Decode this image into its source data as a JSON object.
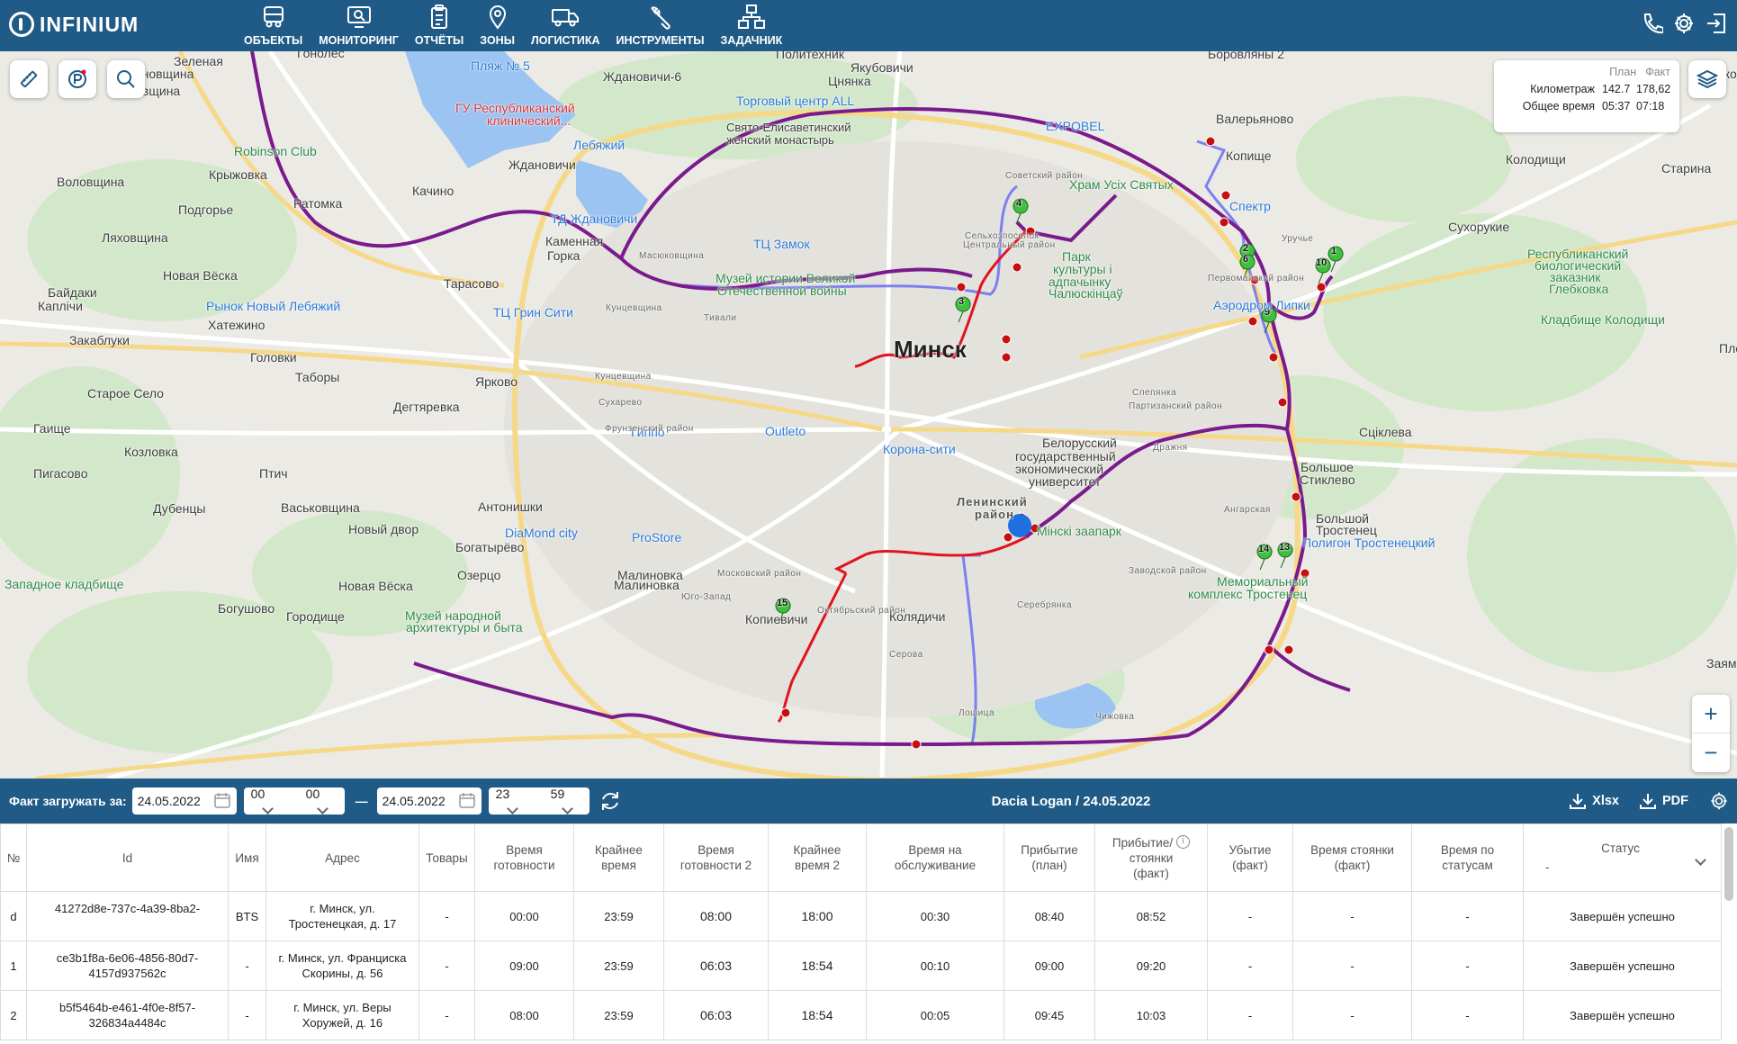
{
  "app": {
    "logo_text": "INFINIUM"
  },
  "nav": [
    {
      "label": "ОБЪЕКТЫ",
      "icon": "truck-icon"
    },
    {
      "label": "МОНИТОРИНГ",
      "icon": "monitor-search-icon"
    },
    {
      "label": "ОТЧЁТЫ",
      "icon": "clipboard-icon"
    },
    {
      "label": "ЗОНЫ",
      "icon": "map-pin-icon"
    },
    {
      "label": "ЛОГИСТИКА",
      "icon": "delivery-truck-icon"
    },
    {
      "label": "ИНСТРУМЕНТЫ",
      "icon": "wrench-icon"
    },
    {
      "label": "ЗАДАЧНИК",
      "icon": "hierarchy-icon"
    }
  ],
  "header_icons": [
    "phone-icon",
    "gear-icon",
    "logout-icon"
  ],
  "map": {
    "city_label": "Минск",
    "labels": [
      "Зеленая",
      "Гонолес",
      "Малиновщина",
      "Воловщина",
      "Пляж № 5",
      "Ждановичи-6",
      "Политехник",
      "Якубовичи",
      "Цнянка",
      "Торговый центр ALL",
      "Свято-Елисаветинский",
      "женский монастырь",
      "ГУ Республиканский",
      "клинический...",
      "Лебяжий",
      "Robinson Club",
      "Ждановичи",
      "Крыжовка",
      "Качино",
      "Воловщина",
      "Подгорье",
      "Ратомка",
      "ТД Ждановичи",
      "Ляховщина",
      "Каменная",
      "Горка",
      "Масюковщина",
      "ТЦ Замок",
      "Новая Вёска",
      "Тарасово",
      "Байдаки",
      "Каплічи",
      "Рынок Новый Лебяжий",
      "Музей истории Великой",
      "Отечественной войны",
      "Хатежино",
      "ТЦ Грин Сити",
      "Кунцевщина",
      "Тивали",
      "Закаблуки",
      "Головки",
      "Таборы",
      "Старое Село",
      "Дегтяревка",
      "Ярково",
      "Сухарево",
      "Гаище",
      "Outleto",
      "Гиппо",
      "Козловка",
      "Пигасово",
      "Птич",
      "Корона-сити",
      "Белорусский",
      "государственный",
      "экономический",
      "университет",
      "Ленинский",
      "район",
      "Дубенцы",
      "Васьковщина",
      "Антонишки",
      "Новый двор",
      "DiaMond city",
      "ProStore",
      "Богатырёво",
      "Западное кладбище",
      "Озерцо",
      "Малиновка",
      "Новая Вёска",
      "Богушово",
      "Городище",
      "Музей народной",
      "архитектуры и быта",
      "Копиевичи",
      "Колядичи",
      "Мінскі заапарк",
      "Мемориальный",
      "комплекс Тростенец",
      "Полигон Тростенецкий",
      "Большой",
      "Тростенец",
      "Большое",
      "Стиклево",
      "Сціклева",
      "Кладбище Колодищи",
      "Республиканский",
      "биологический",
      "заказник",
      "Глебковка",
      "Сухорукие",
      "Колодищи",
      "Старина",
      "Аэродром Липки",
      "Парк",
      "культуры і",
      "адпачынку",
      "Чалюскінцаў",
      "Храм Усіх Святых",
      "Спектр",
      "Копище",
      "Валерьяново",
      "EXPOBEL",
      "Боровляны 2",
      "Лошица",
      "Серова",
      "Чижовка",
      "Уручье",
      "Ангарская",
      "Дражня",
      "Серебрянка",
      "Первомайский район",
      "Советский район",
      "Сельхозпоселок",
      "Кунцевщина",
      "Фрунзенский район",
      "Московский район",
      "Октябрьский район",
      "Заводской район",
      "Партизанский район",
      "Центральный район",
      "Юго-Запад",
      "Слепянка",
      "Малиновка",
      "Жуко",
      "Заям",
      "Плещ"
    ],
    "stop_numbers": [
      "1",
      "2",
      "3",
      "4",
      "6",
      "9",
      "10",
      "13",
      "14",
      "15"
    ],
    "route_colors": {
      "plan": "#7a1a8c",
      "fact": "#e0141e",
      "alt": "#6a6ef2"
    }
  },
  "plan_fact": {
    "col_plan": "План",
    "col_fact": "Факт",
    "rows": [
      {
        "label": "Километраж",
        "plan": "142.7",
        "fact": "178,62"
      },
      {
        "label": "Общее время",
        "plan": "05:37",
        "fact": "07:18"
      }
    ]
  },
  "filter_bar": {
    "label": "Факт загружать за:",
    "date_from": "24.05.2022",
    "hour_from": "00",
    "min_from": "00",
    "separator": "—",
    "date_to": "24.05.2022",
    "hour_to": "23",
    "min_to": "59",
    "vehicle_title": "Dacia Logan / 24.05.2022",
    "export_xlsx": "Xlsx",
    "export_pdf": "PDF"
  },
  "table": {
    "headers": [
      "№",
      "Id",
      "Имя",
      "Адрес",
      "Товары",
      "Время готовности",
      "Крайнее время",
      "Время готовности 2",
      "Крайнее время 2",
      "Время на обслуживание",
      "Прибытие/ (план)",
      "Прибытие/ стоянки (факт)",
      "Убытие (факт)",
      "Время стоянки (факт)",
      "Время по статусам",
      "Статус"
    ],
    "header_lines": [
      [
        "№"
      ],
      [
        "Id"
      ],
      [
        "Имя"
      ],
      [
        "Адрес"
      ],
      [
        "Товары"
      ],
      [
        "Время",
        "готовности"
      ],
      [
        "Крайнее",
        "время"
      ],
      [
        "Время",
        "готовности 2"
      ],
      [
        "Крайнее",
        "время 2"
      ],
      [
        "Время на",
        "обслуживание"
      ],
      [
        "Прибытие",
        "(план)"
      ],
      [
        "Прибытие/",
        "стоянки",
        "(факт)"
      ],
      [
        "Убытие",
        "(факт)"
      ],
      [
        "Время стоянки",
        "(факт)"
      ],
      [
        "Время по",
        "статусам"
      ],
      [
        "Статус"
      ]
    ],
    "status_filter_value": "-",
    "rows": [
      {
        "num": "d",
        "id": "41272d8e-737c-4a39-8ba2-",
        "name": "BTS",
        "address": "г. Минск, ул. Тростенецкая, д. 17",
        "goods": "-",
        "ready": "00:00",
        "deadline": "23:59",
        "ready2": "08:00",
        "deadline2": "18:00",
        "service": "00:30",
        "arr_plan": "08:40",
        "arr_fact": "08:52",
        "dep_fact": "-",
        "stop_fact": "-",
        "status_time": "-",
        "status": "Завершён успешно"
      },
      {
        "num": "1",
        "id": "ce3b1f8a-6e06-4856-80d7-4157d937562c",
        "name": "-",
        "address": "г. Минск, ул. Франциска Скорины, д. 56",
        "goods": "-",
        "ready": "09:00",
        "deadline": "23:59",
        "ready2": "06:03",
        "deadline2": "18:54",
        "service": "00:10",
        "arr_plan": "09:00",
        "arr_fact": "09:20",
        "dep_fact": "-",
        "stop_fact": "-",
        "status_time": "-",
        "status": "Завершён успешно"
      },
      {
        "num": "2",
        "id": "b5f5464b-e461-4f0e-8f57-326834a4484c",
        "name": "-",
        "address": "г. Минск, ул. Веры Хоружей, д. 16",
        "goods": "-",
        "ready": "08:00",
        "deadline": "23:59",
        "ready2": "06:03",
        "deadline2": "18:54",
        "service": "00:05",
        "arr_plan": "09:45",
        "arr_fact": "10:03",
        "dep_fact": "-",
        "stop_fact": "-",
        "status_time": "-",
        "status": "Завершён успешно"
      }
    ]
  }
}
